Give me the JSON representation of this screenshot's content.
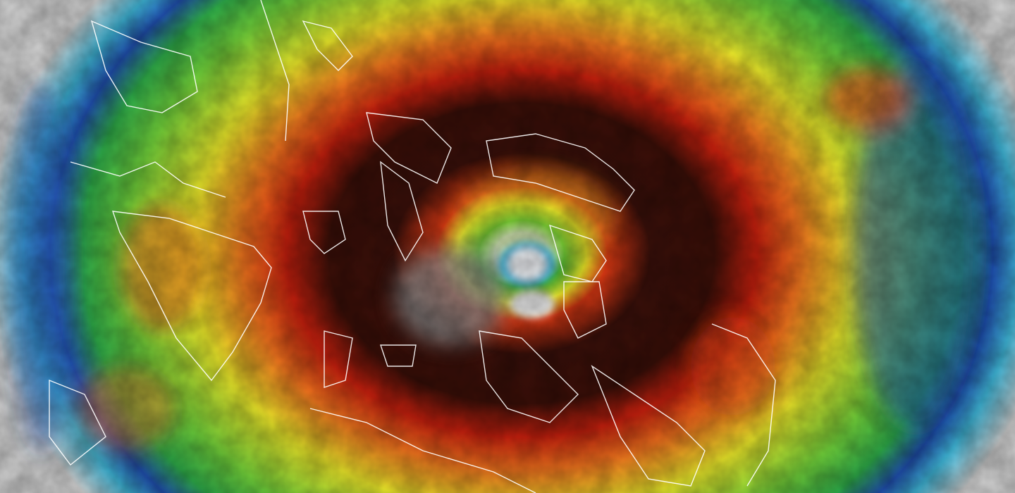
{
  "image": {
    "subject": "infrared-satellite-typhoon",
    "palette": {
      "background_clouds": "#d4d4d4",
      "outer_blue": "#1f4fb0",
      "cyan": "#3fb6d8",
      "green": "#3fbf3a",
      "yellow": "#e8e52a",
      "orange": "#f0741e",
      "red": "#c8200e",
      "dark_core": "#2a0c08",
      "eye_white": "#eef2f6",
      "coastline": "#ffffff"
    }
  }
}
